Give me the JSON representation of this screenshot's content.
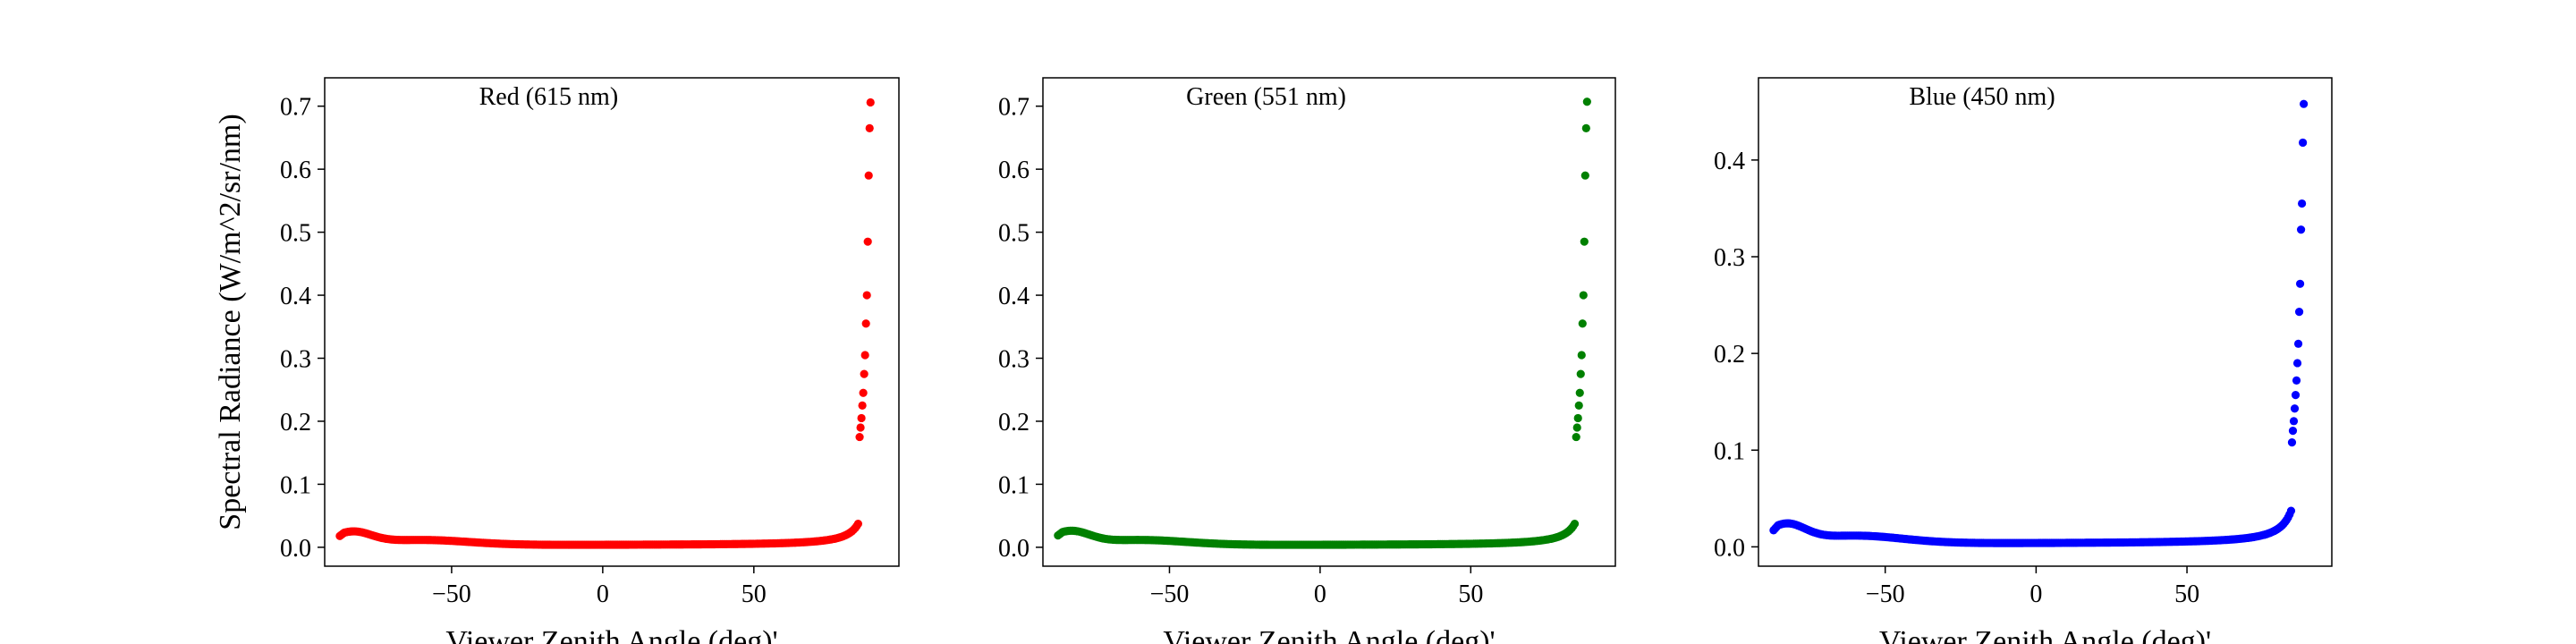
{
  "chart_data": [
    {
      "type": "scatter",
      "title": "Red (615 nm)",
      "xlabel": "Viewer Zenith Angle (deg)'",
      "ylabel": "Spectral Radiance (W/m^2/sr/nm)",
      "color": "#ff0000",
      "xlim": [
        -92,
        98
      ],
      "ylim": [
        -0.03,
        0.745
      ],
      "xticks": [
        -50,
        0,
        50
      ],
      "yticks": [
        0.0,
        0.1,
        0.2,
        0.3,
        0.4,
        0.5,
        0.6,
        0.7
      ],
      "curve": {
        "floor": 0.004,
        "hump": 0.023,
        "peak": 0.706
      },
      "tail_points": [
        {
          "x": 85.0,
          "y": 0.175
        },
        {
          "x": 85.3,
          "y": 0.19
        },
        {
          "x": 85.6,
          "y": 0.205
        },
        {
          "x": 85.9,
          "y": 0.225
        },
        {
          "x": 86.2,
          "y": 0.245
        },
        {
          "x": 86.5,
          "y": 0.275
        },
        {
          "x": 86.8,
          "y": 0.305
        },
        {
          "x": 87.1,
          "y": 0.355
        },
        {
          "x": 87.4,
          "y": 0.4
        },
        {
          "x": 87.7,
          "y": 0.485
        },
        {
          "x": 88.0,
          "y": 0.59
        },
        {
          "x": 88.3,
          "y": 0.665
        },
        {
          "x": 88.6,
          "y": 0.706
        }
      ]
    },
    {
      "type": "scatter",
      "title": "Green (551 nm)",
      "xlabel": "Viewer Zenith Angle (deg)'",
      "ylabel": "",
      "color": "#008000",
      "xlim": [
        -92,
        98
      ],
      "ylim": [
        -0.03,
        0.745
      ],
      "xticks": [
        -50,
        0,
        50
      ],
      "yticks": [
        0.0,
        0.1,
        0.2,
        0.3,
        0.4,
        0.5,
        0.6,
        0.7
      ],
      "curve": {
        "floor": 0.004,
        "hump": 0.024,
        "peak": 0.707
      },
      "tail_points": [
        {
          "x": 85.0,
          "y": 0.175
        },
        {
          "x": 85.3,
          "y": 0.19
        },
        {
          "x": 85.6,
          "y": 0.205
        },
        {
          "x": 85.9,
          "y": 0.225
        },
        {
          "x": 86.2,
          "y": 0.245
        },
        {
          "x": 86.5,
          "y": 0.275
        },
        {
          "x": 86.8,
          "y": 0.305
        },
        {
          "x": 87.1,
          "y": 0.355
        },
        {
          "x": 87.4,
          "y": 0.4
        },
        {
          "x": 87.7,
          "y": 0.485
        },
        {
          "x": 88.0,
          "y": 0.59
        },
        {
          "x": 88.3,
          "y": 0.665
        },
        {
          "x": 88.6,
          "y": 0.707
        }
      ]
    },
    {
      "type": "scatter",
      "title": "Blue (450 nm)",
      "xlabel": "Viewer Zenith Angle (deg)'",
      "ylabel": "",
      "color": "#0000ff",
      "xlim": [
        -92,
        98
      ],
      "ylim": [
        -0.02,
        0.485
      ],
      "xticks": [
        -50,
        0,
        50
      ],
      "yticks": [
        0.0,
        0.1,
        0.2,
        0.3,
        0.4
      ],
      "curve": {
        "floor": 0.004,
        "hump": 0.022,
        "peak": 0.458
      },
      "tail_points": [
        {
          "x": 84.8,
          "y": 0.108
        },
        {
          "x": 85.1,
          "y": 0.12
        },
        {
          "x": 85.4,
          "y": 0.13
        },
        {
          "x": 85.7,
          "y": 0.143
        },
        {
          "x": 86.0,
          "y": 0.157
        },
        {
          "x": 86.3,
          "y": 0.172
        },
        {
          "x": 86.6,
          "y": 0.19
        },
        {
          "x": 86.9,
          "y": 0.21
        },
        {
          "x": 87.2,
          "y": 0.243
        },
        {
          "x": 87.5,
          "y": 0.272
        },
        {
          "x": 87.8,
          "y": 0.328
        },
        {
          "x": 88.1,
          "y": 0.355
        },
        {
          "x": 88.4,
          "y": 0.418
        },
        {
          "x": 88.7,
          "y": 0.458
        }
      ]
    }
  ]
}
